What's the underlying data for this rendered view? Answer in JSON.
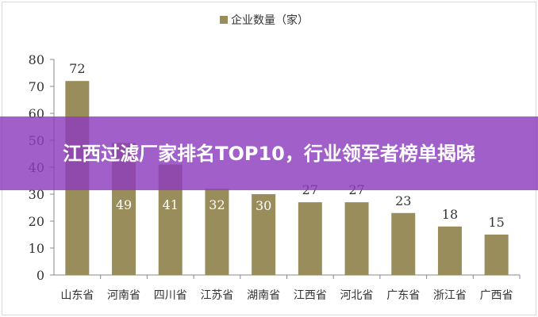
{
  "chart_data": {
    "type": "bar",
    "categories": [
      "山东省",
      "河南省",
      "四川省",
      "江苏省",
      "湖南省",
      "江西省",
      "河北省",
      "广东省",
      "浙江省",
      "广西省"
    ],
    "series": [
      {
        "name": "企业数量（家）",
        "values": [
          72,
          49,
          41,
          32,
          30,
          27,
          27,
          23,
          18,
          15
        ]
      }
    ],
    "yticks": [
      0,
      10,
      20,
      30,
      40,
      50,
      60,
      70,
      80
    ],
    "ylim": [
      0,
      80
    ],
    "legend": "top",
    "grid": false,
    "bar_color": "#9a8d5c"
  },
  "banner": {
    "title": "江西过滤厂家排名TOP10，行业领军者榜单揭晓",
    "color": "#9b4fc8"
  }
}
